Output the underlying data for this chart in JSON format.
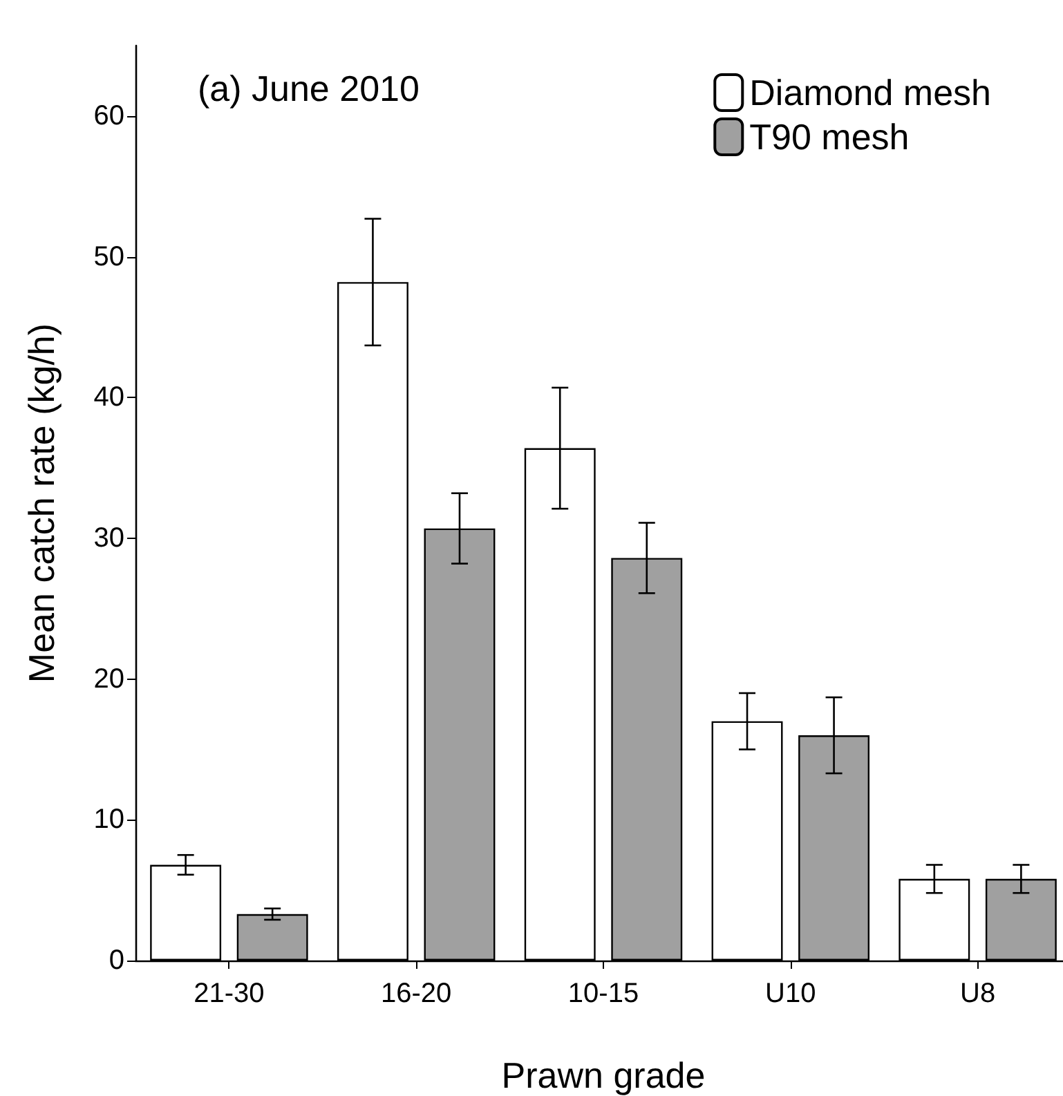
{
  "chart_data": {
    "type": "bar",
    "xlabel": "Prawn grade",
    "ylabel": "Mean catch rate (kg/h)",
    "annotations": [
      "(a) June 2010"
    ],
    "categories": [
      "21-30",
      "16-20",
      "10-15",
      "U10",
      "U8"
    ],
    "series": [
      {
        "name": "Diamond mesh",
        "color": "#ffffff",
        "values": [
          6.8,
          48.2,
          36.4,
          17.0,
          5.8
        ],
        "errors": [
          0.7,
          4.5,
          4.3,
          2.0,
          1.0
        ]
      },
      {
        "name": "T90 mesh",
        "color": "#a0a0a0",
        "values": [
          3.3,
          30.7,
          28.6,
          16.0,
          5.8
        ],
        "errors": [
          0.4,
          2.5,
          2.5,
          2.7,
          1.0
        ]
      }
    ],
    "ylim": [
      0,
      65
    ],
    "yticks": [
      0,
      10,
      20,
      30,
      40,
      50,
      60
    ],
    "grid": false,
    "legend": "top right"
  }
}
